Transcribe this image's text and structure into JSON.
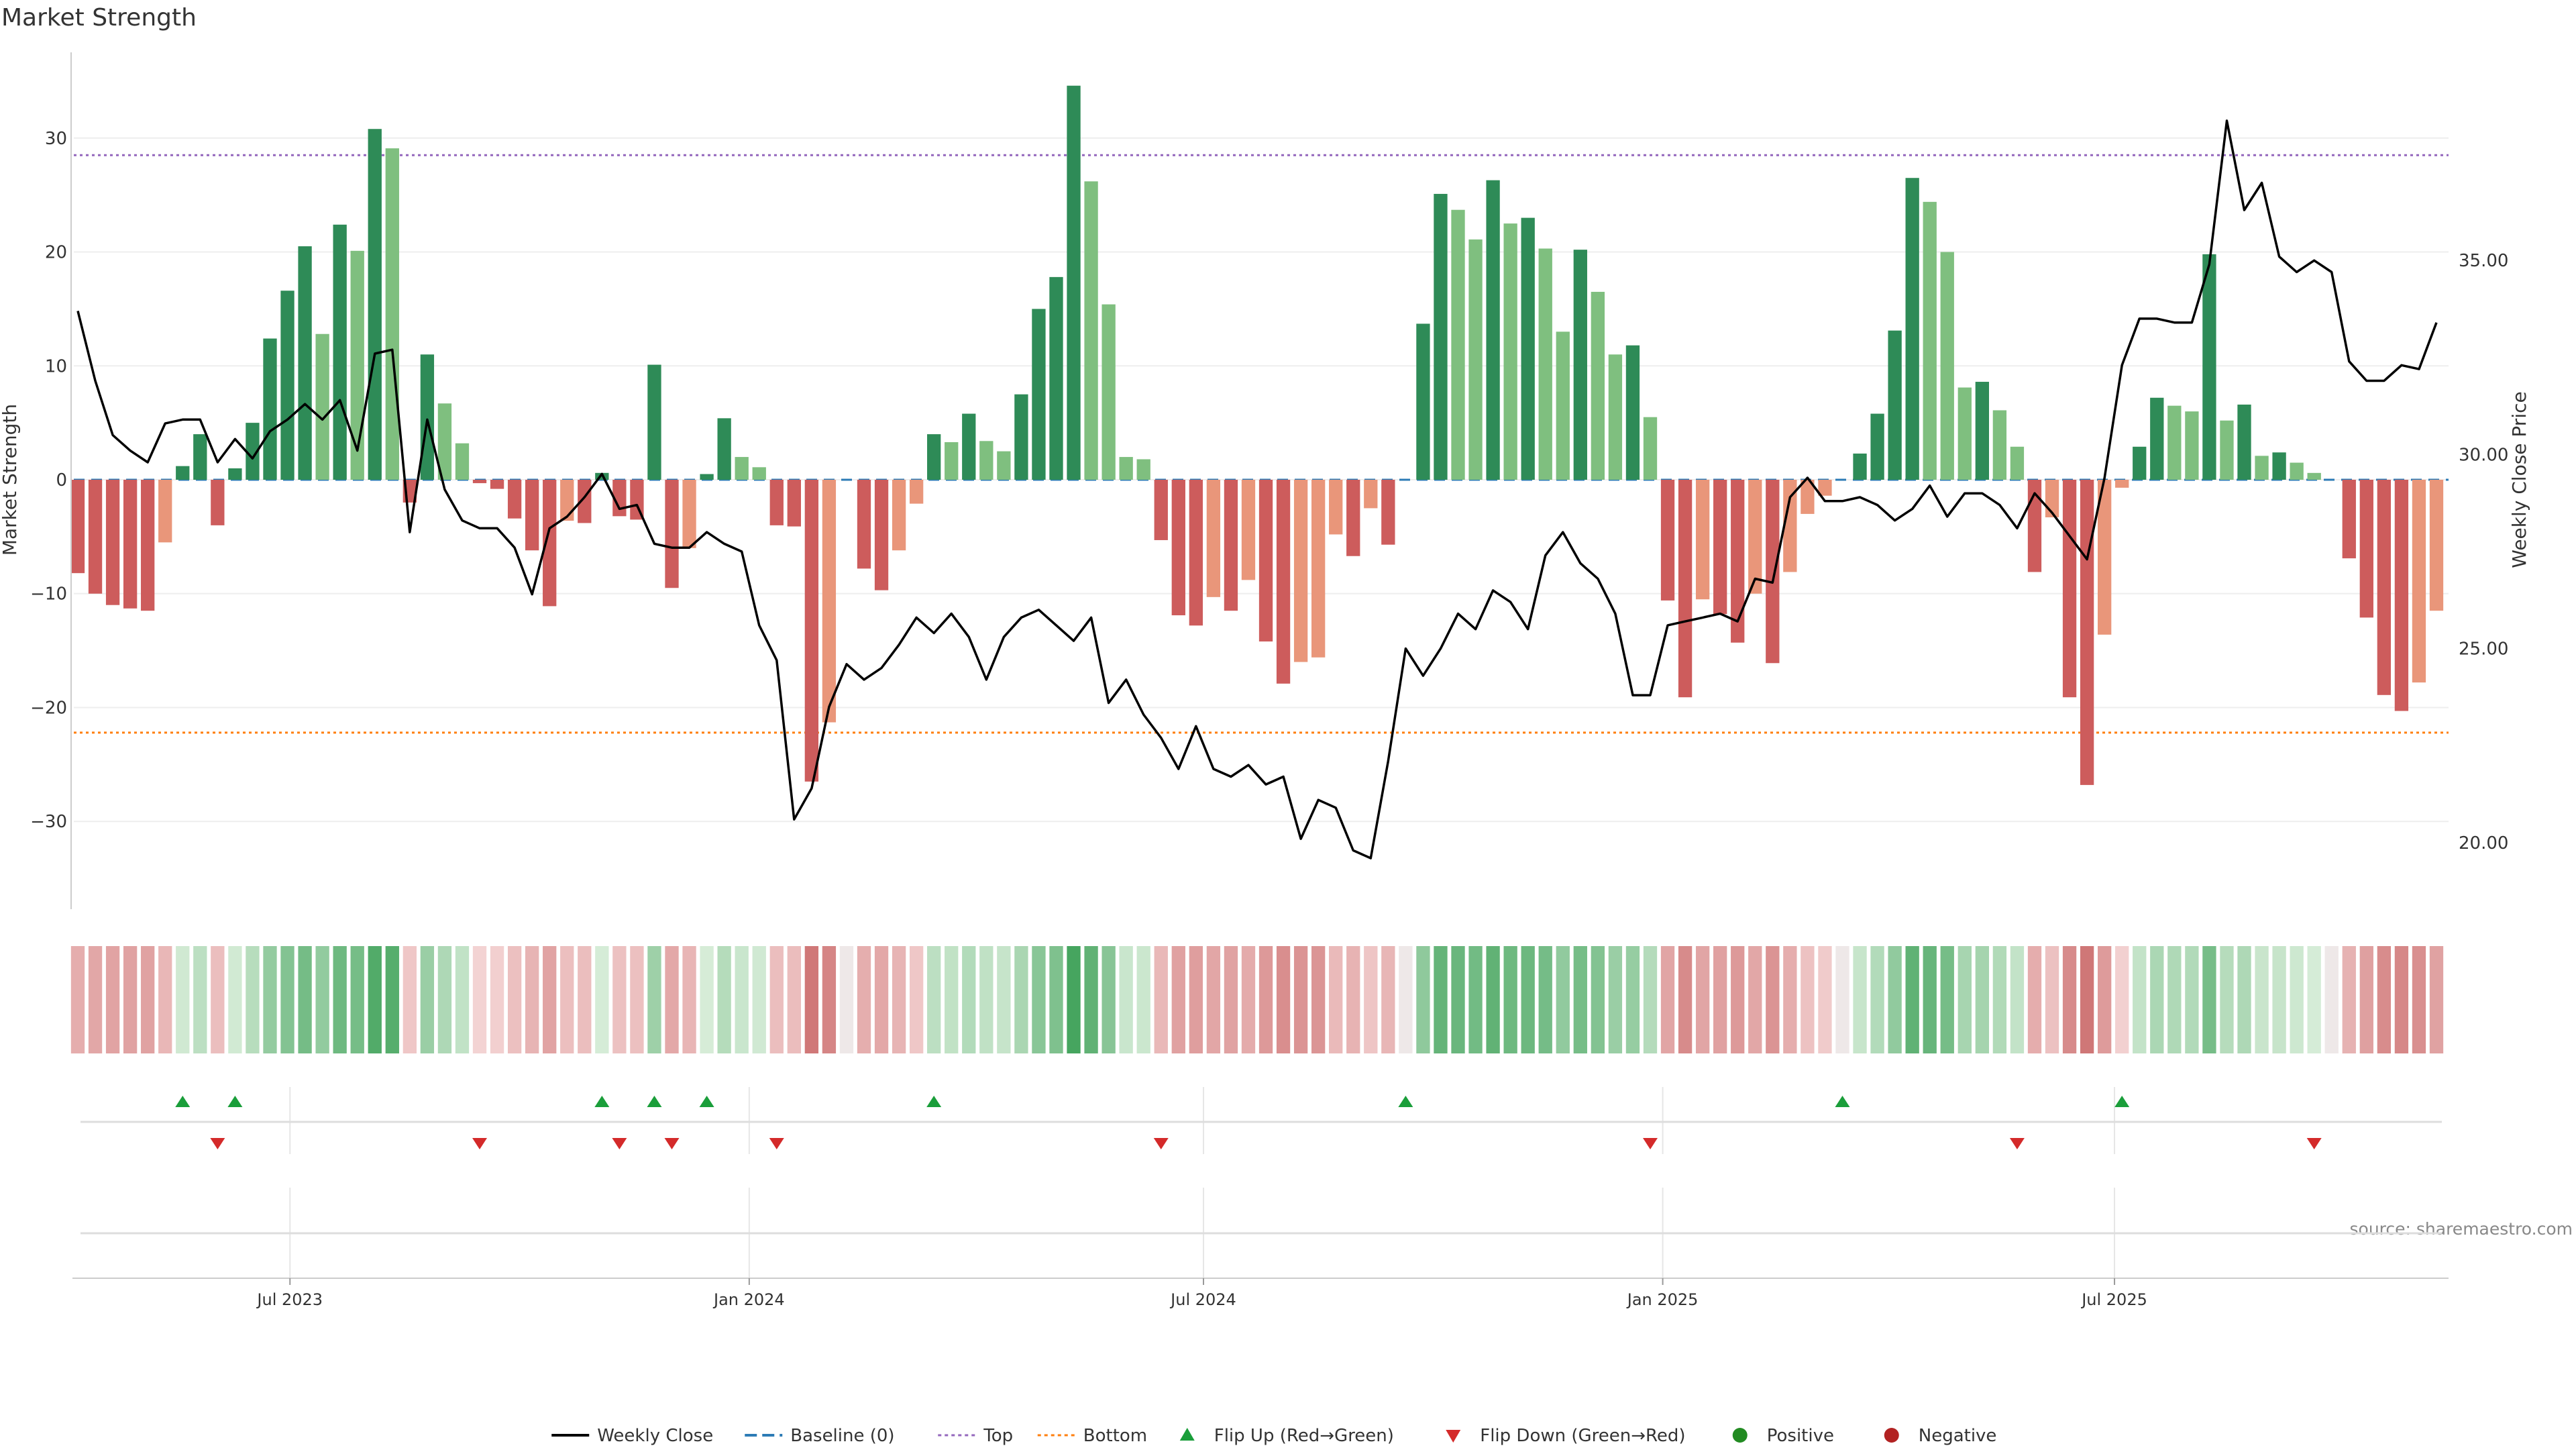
{
  "chart_data": {
    "type": "bar",
    "title": "Market Strength",
    "ylabel_left": "Market Strength",
    "ylabel_right": "Weekly Close Price",
    "ylim_left": [
      -38,
      38
    ],
    "ylim_right": [
      18.2,
      40.5
    ],
    "yticks_left": [
      "−30",
      "−20",
      "−10",
      "0",
      "10",
      "20",
      "30"
    ],
    "yticks_left_values": [
      -30,
      -20,
      -10,
      0,
      10,
      20,
      30
    ],
    "yticks_right": [
      "20.00",
      "25.00",
      "30.00",
      "35.00"
    ],
    "yticks_right_values": [
      20,
      25,
      30,
      35
    ],
    "xticks": [
      "Jul 2023",
      "Jan 2024",
      "Jul 2024",
      "Jan 2025",
      "Jul 2025"
    ],
    "xtick_dates": [
      "2023-07-01",
      "2024-01-01",
      "2024-07-01",
      "2025-01-01",
      "2025-07-01"
    ],
    "date_start": "2023-04-07",
    "week_step_days": 7,
    "top_line": 28.5,
    "bottom_line": -22.2,
    "grid": true,
    "legend_position": "bottom",
    "source": "source: sharemaestro.com",
    "strength": [
      -8.2,
      -10,
      -11,
      -11.3,
      -11.5,
      -5.5,
      1.2,
      4,
      -4,
      1,
      5,
      12.4,
      16.6,
      20.5,
      12.8,
      22.4,
      20.1,
      30.8,
      29.1,
      -2,
      11,
      6.7,
      3.2,
      -0.3,
      -0.8,
      -3.4,
      -6.2,
      -11.1,
      -3.6,
      -3.8,
      0.6,
      -3.2,
      -3.5,
      10.1,
      -9.5,
      -6,
      0.5,
      5.4,
      2,
      1.1,
      -4,
      -4.1,
      -26.5,
      -21.3,
      0,
      -7.8,
      -9.7,
      -6.2,
      -2.1,
      4,
      3.3,
      5.8,
      3.4,
      2.5,
      7.5,
      15,
      17.8,
      34.6,
      26.2,
      15.4,
      2,
      1.8,
      -5.3,
      -11.9,
      -12.8,
      -10.3,
      -11.5,
      -8.8,
      -14.2,
      -17.9,
      -16,
      -15.6,
      -4.8,
      -6.7,
      -2.5,
      -5.7,
      0,
      13.7,
      25.1,
      23.7,
      21.1,
      26.3,
      22.5,
      23,
      20.3,
      13,
      20.2,
      16.5,
      11,
      11.8,
      5.5,
      -10.6,
      -19.1,
      -10.5,
      -11.8,
      -14.3,
      -10,
      -16.1,
      -8.1,
      -3,
      -1.4,
      0,
      2.3,
      5.8,
      13.1,
      26.5,
      24.4,
      20,
      8.1,
      8.6,
      6.1,
      2.9,
      -8.1,
      -3.3,
      -19.1,
      -26.8,
      -13.6,
      -0.7,
      2.9,
      7.2,
      6.5,
      6,
      19.8,
      5.2,
      6.6,
      2.1,
      2.4,
      1.5,
      0.6,
      0,
      -6.9,
      -12.1,
      -18.9,
      -20.3,
      -17.8,
      -11.5
    ],
    "close": [
      33.7,
      31.9,
      30.5,
      30.1,
      29.8,
      30.8,
      30.9,
      30.9,
      29.8,
      30.4,
      29.9,
      30.6,
      30.9,
      31.3,
      30.9,
      31.4,
      30.1,
      32.6,
      32.7,
      28,
      30.9,
      29.1,
      28.3,
      28.1,
      28.1,
      27.6,
      26.4,
      28.1,
      28.4,
      28.9,
      29.5,
      28.6,
      28.7,
      27.7,
      27.6,
      27.6,
      28,
      27.7,
      27.5,
      25.6,
      24.7,
      20.6,
      21.4,
      23.5,
      24.6,
      24.2,
      24.5,
      25.1,
      25.8,
      25.4,
      25.9,
      25.3,
      24.2,
      25.3,
      25.8,
      26,
      25.6,
      25.2,
      25.8,
      23.6,
      24.2,
      23.3,
      22.7,
      21.9,
      23,
      21.9,
      21.7,
      22,
      21.5,
      21.7,
      20.1,
      21.1,
      20.9,
      19.8,
      19.6,
      22.1,
      25,
      24.3,
      25,
      25.9,
      25.5,
      26.5,
      26.2,
      25.5,
      27.4,
      28,
      27.2,
      26.8,
      25.9,
      23.8,
      23.8,
      25.6,
      25.7,
      25.8,
      25.9,
      25.7,
      26.8,
      26.7,
      28.9,
      29.4,
      28.8,
      28.8,
      28.9,
      28.7,
      28.3,
      28.6,
      29.2,
      28.4,
      29,
      29,
      28.7,
      28.1,
      29,
      28.5,
      27.9,
      27.3,
      29.4,
      32.3,
      33.5,
      33.5,
      33.4,
      33.4,
      34.9,
      38.6,
      36.3,
      37,
      35.1,
      34.7,
      35,
      34.7,
      32.4,
      31.9,
      31.9,
      32.3,
      32.2,
      33.4
    ],
    "flip_up_indices": [
      6,
      9,
      30,
      33,
      36,
      49,
      76,
      101,
      117
    ],
    "flip_down_indices": [
      8,
      23,
      31,
      34,
      40,
      62,
      90,
      111,
      128
    ],
    "colors": {
      "strong_green": "#2e8b57",
      "light_green": "#7fbf7f",
      "strong_red": "#cd5c5c",
      "light_red": "#e9967a",
      "close_line": "#000000",
      "baseline": "#2c7bb6",
      "top": "#9467bd",
      "bottom": "#ff7f0e",
      "flip_up": "#1a9e3a",
      "flip_down": "#d42a2a",
      "positive": "#228b22",
      "negative": "#b22222"
    },
    "legend": [
      {
        "label": "Weekly Close",
        "marker": "line-solid",
        "color": "#000000"
      },
      {
        "label": "Baseline (0)",
        "marker": "line-dashed",
        "color": "#2c7bb6"
      },
      {
        "label": "Top",
        "marker": "line-dotted",
        "color": "#9467bd"
      },
      {
        "label": "Bottom",
        "marker": "line-dotted",
        "color": "#ff7f0e"
      },
      {
        "label": "Flip Up (Red→Green)",
        "marker": "triangle-up",
        "color": "#1a9e3a"
      },
      {
        "label": "Flip Down (Green→Red)",
        "marker": "triangle-down",
        "color": "#d42a2a"
      },
      {
        "label": "Positive",
        "marker": "dot",
        "color": "#228b22"
      },
      {
        "label": "Negative",
        "marker": "dot",
        "color": "#b22222"
      }
    ]
  }
}
